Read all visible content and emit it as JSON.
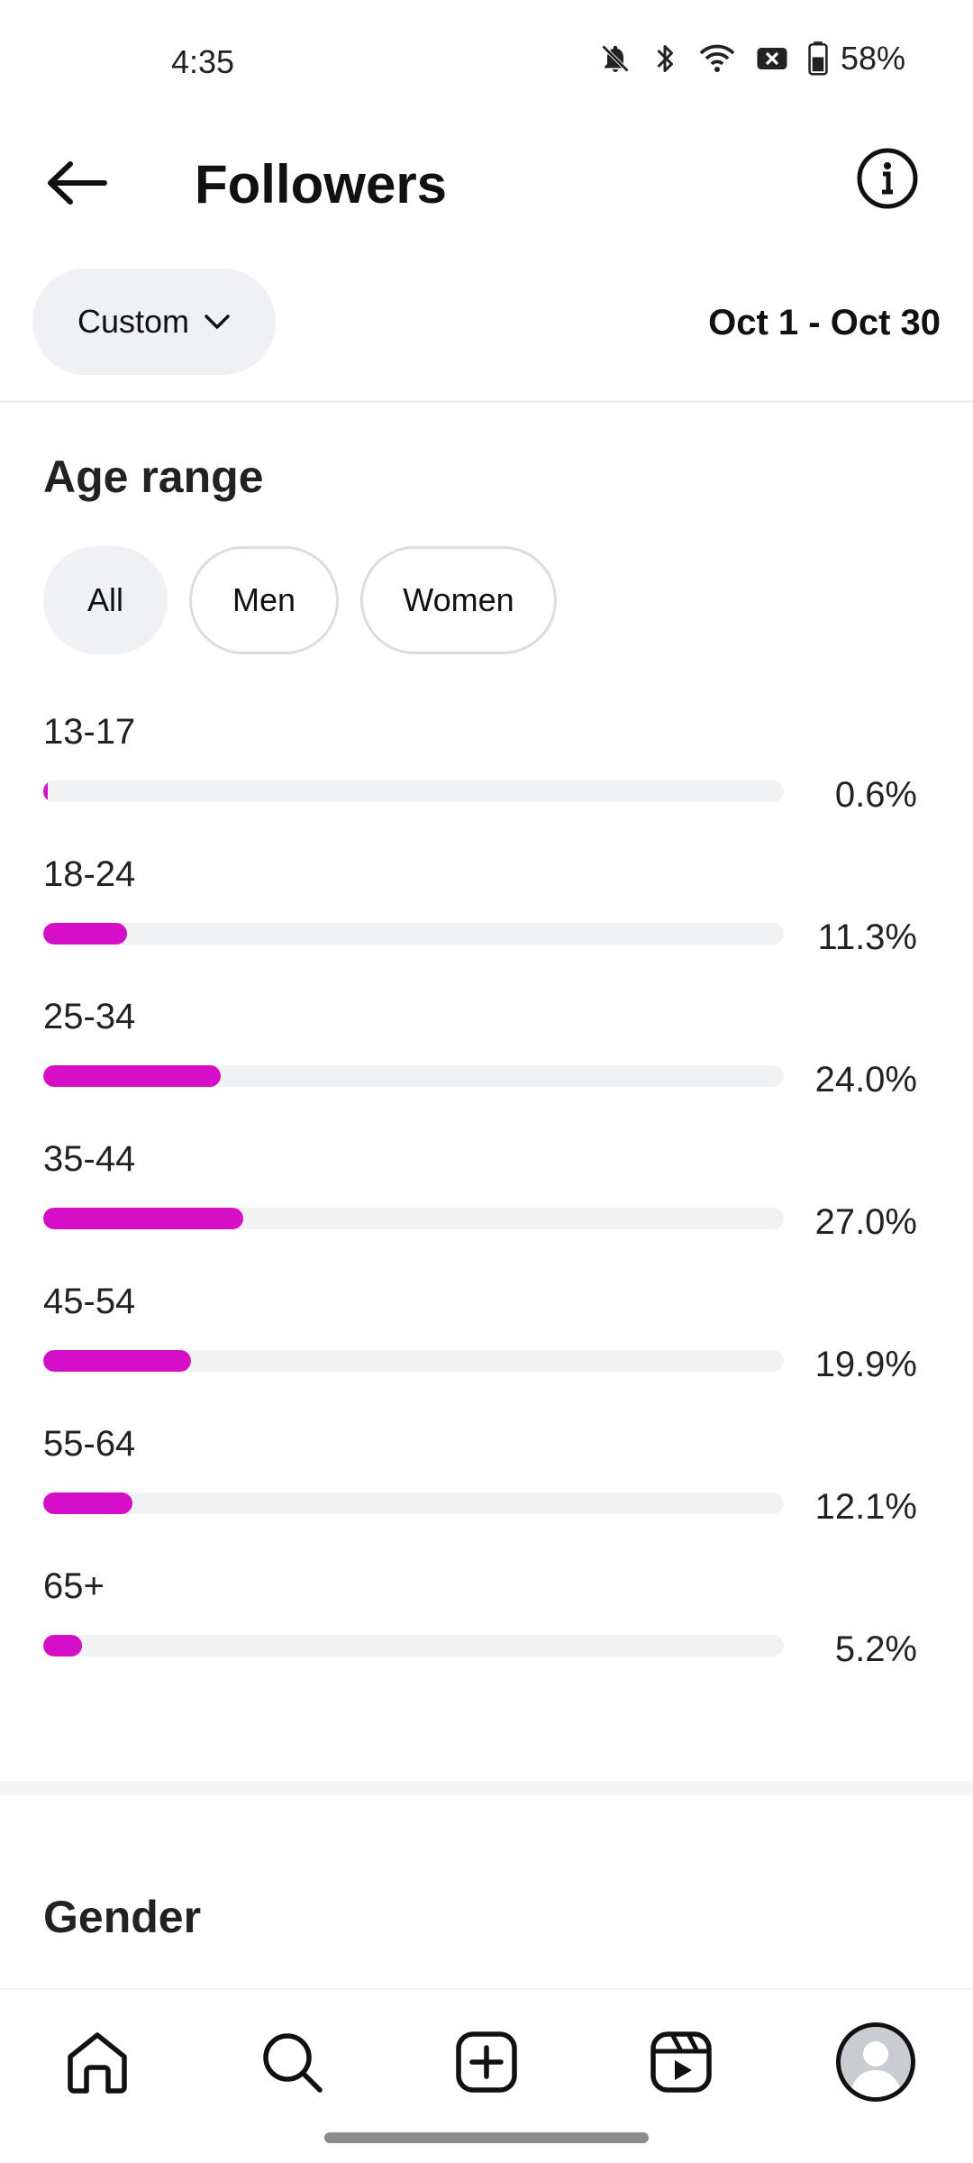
{
  "status_bar": {
    "time": "4:35",
    "battery": "58%",
    "icons": [
      "bell-off-icon",
      "bluetooth-icon",
      "wifi-icon",
      "no-sim-icon",
      "battery-icon"
    ]
  },
  "header": {
    "title": "Followers",
    "back_icon": "arrow-left-icon",
    "info_icon": "info-icon"
  },
  "filter": {
    "period_label": "Custom",
    "date_range": "Oct 1 - Oct 30"
  },
  "age_section": {
    "title": "Age range",
    "tabs": [
      {
        "label": "All",
        "active": true
      },
      {
        "label": "Men",
        "active": false
      },
      {
        "label": "Women",
        "active": false
      }
    ],
    "rows": [
      {
        "label": "13-17",
        "percent_text": "0.6%",
        "value": 0.6
      },
      {
        "label": "18-24",
        "percent_text": "11.3%",
        "value": 11.3
      },
      {
        "label": "25-34",
        "percent_text": "24.0%",
        "value": 24.0
      },
      {
        "label": "35-44",
        "percent_text": "27.0%",
        "value": 27.0
      },
      {
        "label": "45-54",
        "percent_text": "19.9%",
        "value": 19.9
      },
      {
        "label": "55-64",
        "percent_text": "12.1%",
        "value": 12.1
      },
      {
        "label": "65+",
        "percent_text": "5.2%",
        "value": 5.2
      }
    ],
    "bar_color": "#d50fc6",
    "bar_max_percent": 100
  },
  "gender_section": {
    "title": "Gender"
  },
  "bottom_nav": {
    "items": [
      "home-icon",
      "search-icon",
      "create-icon",
      "reels-icon",
      "profile-avatar"
    ]
  }
}
